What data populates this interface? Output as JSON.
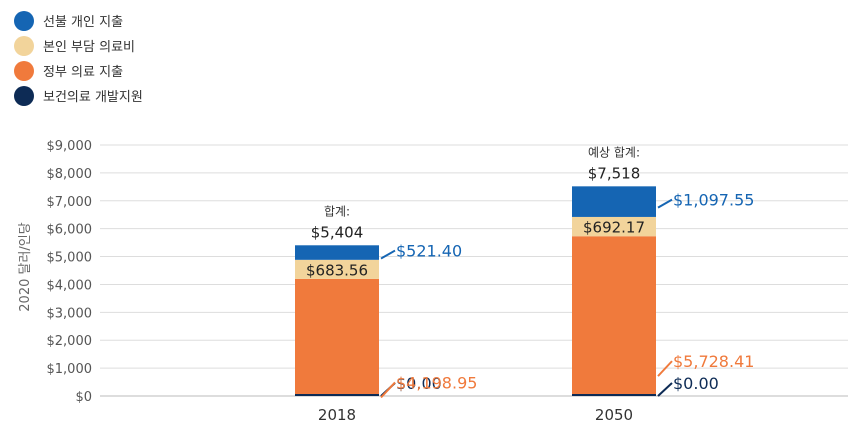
{
  "chart_data": {
    "type": "bar",
    "stacked": true,
    "ylabel": "2020 달러/인당",
    "ylim": [
      0,
      9000
    ],
    "yticks": [
      "$0",
      "$1,000",
      "$2,000",
      "$3,000",
      "$4,000",
      "$5,000",
      "$6,000",
      "$7,000",
      "$8,000",
      "$9,000"
    ],
    "categories": [
      "2018",
      "2050"
    ],
    "series": [
      {
        "name": "보건의료 개발지원",
        "color": "#0d2b55",
        "values": [
          0,
          0
        ],
        "labels": [
          "$0.00",
          "$0.00"
        ]
      },
      {
        "name": "정부 의료 지출",
        "color": "#f07a3c",
        "values": [
          4198.95,
          5728.41
        ],
        "labels": [
          "$4,198.95",
          "$5,728.41"
        ]
      },
      {
        "name": "본인 부담 의료비",
        "color": "#f2d49b",
        "values": [
          683.56,
          692.17
        ],
        "labels": [
          "$683.56",
          "$692.17"
        ]
      },
      {
        "name": "선불 개인 지출",
        "color": "#1565b3",
        "values": [
          521.4,
          1097.55
        ],
        "labels": [
          "$521.40",
          "$1,097.55"
        ]
      }
    ],
    "totals": [
      {
        "heading": "합계:",
        "value": "$5,404"
      },
      {
        "heading": "예상 합계:",
        "value": "$7,518"
      }
    ],
    "grid": true,
    "legend_position": "top-left"
  },
  "legend": [
    {
      "label": "선불 개인 지출",
      "color": "#1565b3"
    },
    {
      "label": "본인 부담 의료비",
      "color": "#f2d49b"
    },
    {
      "label": "정부 의료 지출",
      "color": "#f07a3c"
    },
    {
      "label": "보건의료 개발지원",
      "color": "#0d2b55"
    }
  ]
}
